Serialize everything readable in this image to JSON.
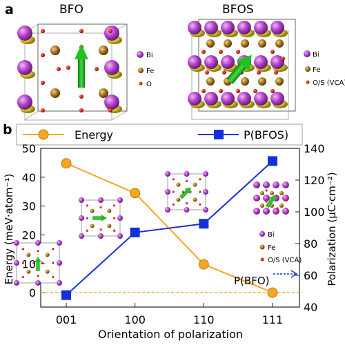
{
  "panel_a": {
    "label": "a",
    "structures": [
      {
        "title": "BFO",
        "legend": [
          "Bi",
          "Fe",
          "O"
        ]
      },
      {
        "title": "BFOS",
        "legend": [
          "Bi",
          "Fe",
          "O/S (VCA)"
        ]
      }
    ]
  },
  "panel_b": {
    "label": "b",
    "inset_legend": [
      "Bi",
      "Fe",
      "O/S (VCA)"
    ],
    "reference_label": "P(BFO)"
  },
  "colors": {
    "energy": "#F5A623",
    "polarization": "#1530D8",
    "bi": "#B040C8",
    "fe": "#A87420",
    "o": "#E02010",
    "arrow": "#22C020"
  },
  "chart_data": {
    "type": "line",
    "categories": [
      "001",
      "100",
      "110",
      "111"
    ],
    "xlabel": "Orientation of polarization",
    "series": [
      {
        "name": "Energy",
        "axis": "left",
        "values": [
          44.8,
          34.5,
          9.8,
          0.0
        ]
      },
      {
        "name": "P(BFOS)",
        "axis": "right",
        "values": [
          47.5,
          87.0,
          92.5,
          132.0
        ]
      }
    ],
    "ylabel": "Energy (meV·atom⁻¹)",
    "ylim": [
      -5,
      50
    ],
    "yticks": [
      0,
      10,
      20,
      30,
      40,
      50
    ],
    "y2label": "Polarization (μC·cm⁻²)",
    "y2lim": [
      40,
      140
    ],
    "y2ticks": [
      40,
      60,
      80,
      100,
      120,
      140
    ],
    "reference_line": {
      "axis": "left",
      "value": 0
    },
    "reference_marker": {
      "axis": "right",
      "value": 60
    },
    "grid": false,
    "legend": "top"
  }
}
